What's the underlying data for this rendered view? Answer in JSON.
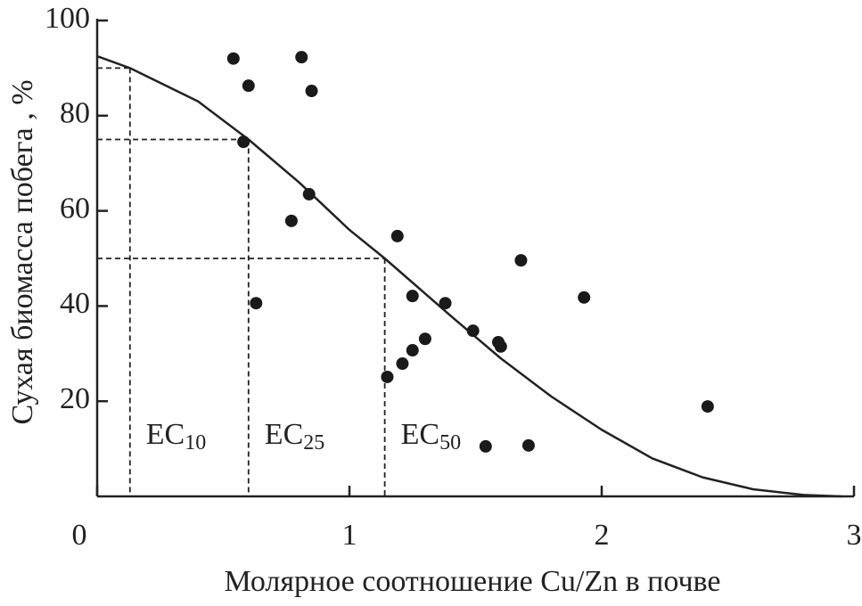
{
  "chart_data": {
    "type": "scatter",
    "xlabel": "Молярное соотношение Cu/Zn в почве",
    "ylabel": "Сухая биомасса побега , %",
    "xlim": [
      0,
      3
    ],
    "ylim": [
      0,
      100
    ],
    "xticks": [
      0,
      1,
      2,
      3
    ],
    "yticks": [
      20,
      40,
      60,
      80,
      100
    ],
    "color": "#1a1a1a",
    "x": [
      0.54,
      0.6,
      0.81,
      0.85,
      0.58,
      0.84,
      0.77,
      0.63,
      1.19,
      1.25,
      1.38,
      1.68,
      1.93,
      1.49,
      1.59,
      1.6,
      1.3,
      1.25,
      1.21,
      1.15,
      1.54,
      1.71,
      2.42
    ],
    "values": [
      92,
      86.3,
      92.3,
      85.2,
      74.5,
      63.5,
      57.9,
      40.6,
      54.7,
      42.1,
      40.6,
      49.6,
      41.8,
      34.8,
      32.4,
      31.5,
      33.1,
      30.7,
      27.9,
      25.1,
      10.5,
      10.7,
      18.9
    ],
    "fit": {
      "x": [
        0,
        0.13,
        0.4,
        0.6,
        0.8,
        1.0,
        1.14,
        1.4,
        1.6,
        1.8,
        2.0,
        2.2,
        2.4,
        2.6,
        2.8,
        2.95
      ],
      "y": [
        92.5,
        90,
        83,
        75,
        66,
        56,
        50,
        38,
        29,
        21,
        14,
        8,
        4,
        1.5,
        0.3,
        0
      ]
    },
    "ec": [
      {
        "label": "EC",
        "sub": "10",
        "x": 0.13,
        "y": 90
      },
      {
        "label": "EC",
        "sub": "25",
        "x": 0.6,
        "y": 75
      },
      {
        "label": "EC",
        "sub": "50",
        "x": 1.14,
        "y": 50
      }
    ]
  }
}
